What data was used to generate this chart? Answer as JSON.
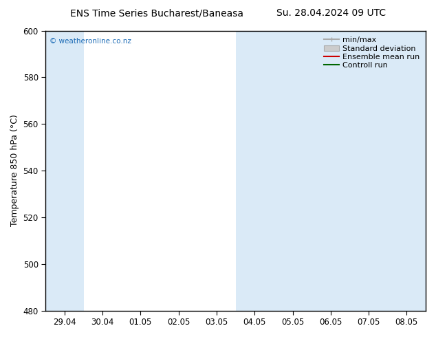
{
  "title_left": "ENS Time Series Bucharest/Baneasa",
  "title_right": "Su. 28.04.2024 09 UTC",
  "ylabel": "Temperature 850 hPa (°C)",
  "ylim": [
    480,
    600
  ],
  "yticks": [
    480,
    500,
    520,
    540,
    560,
    580,
    600
  ],
  "xtick_labels": [
    "29.04",
    "30.04",
    "01.05",
    "02.05",
    "03.05",
    "04.05",
    "05.05",
    "06.05",
    "07.05",
    "08.05"
  ],
  "xtick_positions": [
    0,
    1,
    2,
    3,
    4,
    5,
    6,
    7,
    8,
    9
  ],
  "xlim": [
    -0.5,
    9.5
  ],
  "watermark": "© weatheronline.co.nz",
  "watermark_color": "#1a6ab5",
  "bg_color": "#ffffff",
  "plot_bg_color": "#ffffff",
  "band_color": "#daeaf7",
  "band_ranges": [
    [
      -0.5,
      0.5
    ],
    [
      4.5,
      6.5
    ],
    [
      6.5,
      9.5
    ]
  ],
  "legend_items": [
    {
      "label": "min/max",
      "color": "#aaaaaa",
      "type": "hline"
    },
    {
      "label": "Standard deviation",
      "color": "#cccccc",
      "type": "rect"
    },
    {
      "label": "Ensemble mean run",
      "color": "#cc0000",
      "type": "line"
    },
    {
      "label": "Controll run",
      "color": "#006600",
      "type": "line"
    }
  ],
  "title_fontsize": 10,
  "axis_label_fontsize": 9,
  "tick_fontsize": 8.5,
  "legend_fontsize": 8
}
